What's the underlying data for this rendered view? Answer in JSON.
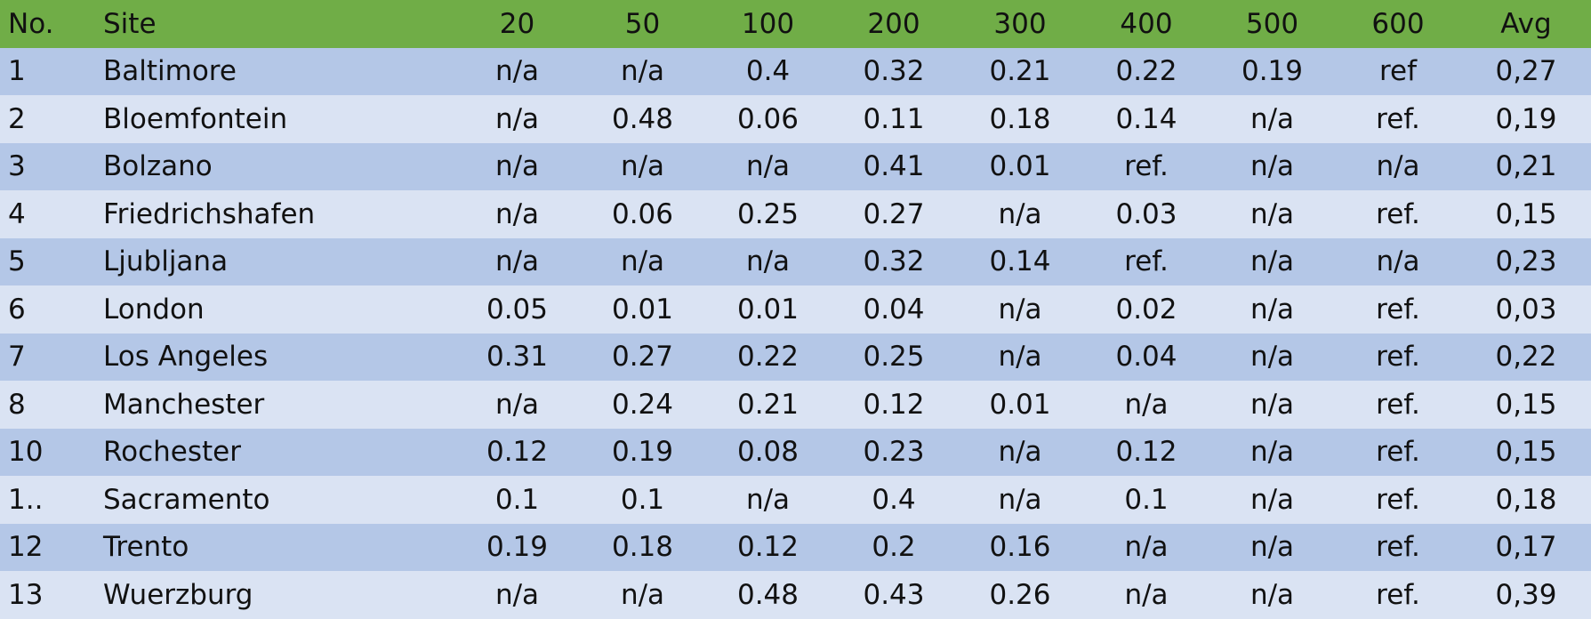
{
  "table": {
    "header": [
      "No.",
      "Site",
      "20",
      "50",
      "100",
      "200",
      "300",
      "400",
      "500",
      "600",
      "Avg"
    ],
    "rows": [
      [
        "1",
        "Baltimore",
        "n/a",
        "n/a",
        "0.4",
        "0.32",
        "0.21",
        "0.22",
        "0.19",
        "ref",
        "0,27"
      ],
      [
        "2",
        "Bloemfontein",
        "n/a",
        "0.48",
        "0.06",
        "0.11",
        "0.18",
        "0.14",
        "n/a",
        "ref.",
        "0,19"
      ],
      [
        "3",
        "Bolzano",
        "n/a",
        "n/a",
        "n/a",
        "0.41",
        "0.01",
        "ref.",
        "n/a",
        "n/a",
        "0,21"
      ],
      [
        "4",
        "Friedrichshafen",
        "n/a",
        "0.06",
        "0.25",
        "0.27",
        "n/a",
        "0.03",
        "n/a",
        "ref.",
        "0,15"
      ],
      [
        "5",
        "Ljubljana",
        "n/a",
        "n/a",
        "n/a",
        "0.32",
        "0.14",
        "ref.",
        "n/a",
        "n/a",
        "0,23"
      ],
      [
        "6",
        "London",
        "0.05",
        "0.01",
        "0.01",
        "0.04",
        "n/a",
        "0.02",
        "n/a",
        "ref.",
        "0,03"
      ],
      [
        "7",
        "Los Angeles",
        "0.31",
        "0.27",
        "0.22",
        "0.25",
        "n/a",
        "0.04",
        "n/a",
        "ref.",
        "0,22"
      ],
      [
        "8",
        "Manchester",
        "n/a",
        "0.24",
        "0.21",
        "0.12",
        "0.01",
        "n/a",
        "n/a",
        "ref.",
        "0,15"
      ],
      [
        "10",
        "Rochester",
        "0.12",
        "0.19",
        "0.08",
        "0.23",
        "n/a",
        "0.12",
        "n/a",
        "ref.",
        "0,15"
      ],
      [
        "1..",
        "Sacramento",
        "0.1",
        "0.1",
        "n/a",
        "0.4",
        "n/a",
        "0.1",
        "n/a",
        "ref.",
        "0,18"
      ],
      [
        "12",
        "Trento",
        "0.19",
        "0.18",
        "0.12",
        "0.2",
        "0.16",
        "n/a",
        "n/a",
        "ref.",
        "0,17"
      ],
      [
        "13",
        "Wuerzburg",
        "n/a",
        "n/a",
        "0.48",
        "0.43",
        "0.26",
        "n/a",
        "n/a",
        "ref.",
        "0,39"
      ]
    ]
  }
}
